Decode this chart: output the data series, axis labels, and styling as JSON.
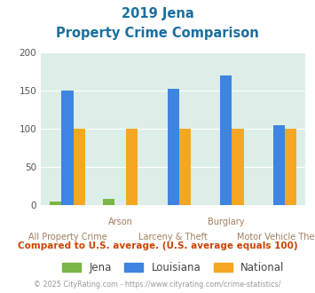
{
  "title_line1": "2019 Jena",
  "title_line2": "Property Crime Comparison",
  "groups": [
    "All Property Crime",
    "Arson",
    "Larceny & Theft",
    "Burglary",
    "Motor Vehicle Theft"
  ],
  "jena": [
    5,
    8,
    0,
    0,
    0
  ],
  "louisiana": [
    150,
    0,
    153,
    170,
    105
  ],
  "national": [
    100,
    100,
    100,
    100,
    100
  ],
  "jena_color": "#7ab648",
  "louisiana_color": "#3d85e0",
  "national_color": "#f5a623",
  "bg_color": "#ddeee8",
  "title_color": "#1a6fa0",
  "xlabel_top_color": "#a08060",
  "xlabel_bottom_color": "#a08060",
  "footer_color": "#999999",
  "note_color": "#cc4400",
  "ylim": [
    0,
    200
  ],
  "yticks": [
    0,
    50,
    100,
    150,
    200
  ],
  "legend_labels": [
    "Jena",
    "Louisiana",
    "National"
  ],
  "note_text": "Compared to U.S. average. (U.S. average equals 100)",
  "footer_text": "© 2025 CityRating.com - https://www.cityrating.com/crime-statistics/"
}
